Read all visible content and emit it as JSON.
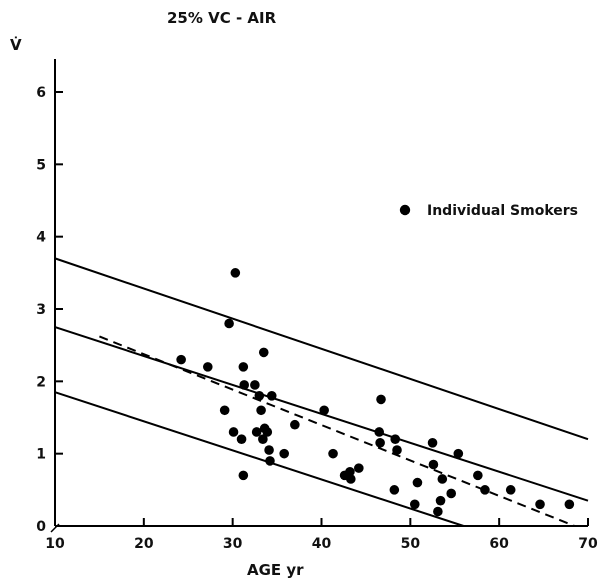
{
  "chart_data": {
    "type": "scatter",
    "title": "25% VC  -  AIR",
    "ylabel": "V̇",
    "xlabel": "AGE   yr",
    "xlim": [
      10,
      70
    ],
    "ylim": [
      0,
      6.5
    ],
    "x_ticks": [
      10,
      20,
      30,
      40,
      50,
      60,
      70
    ],
    "y_ticks": [
      0,
      1,
      2,
      3,
      4,
      5,
      6
    ],
    "x_tick_labels": [
      "10",
      "20",
      "30",
      "40",
      "50",
      "60",
      "70"
    ],
    "y_tick_labels": [
      "0",
      "1",
      "2",
      "3",
      "4",
      "5",
      "6"
    ],
    "grid": false,
    "legend_position": "right",
    "series": [
      {
        "name": "Individual Smokers",
        "marker": "filled-circle",
        "color": "#000000",
        "points": [
          {
            "x": 24.2,
            "y": 2.3
          },
          {
            "x": 27.2,
            "y": 2.2
          },
          {
            "x": 29.1,
            "y": 1.6
          },
          {
            "x": 29.6,
            "y": 2.8
          },
          {
            "x": 30.1,
            "y": 1.3
          },
          {
            "x": 30.3,
            "y": 3.5
          },
          {
            "x": 31.0,
            "y": 1.2
          },
          {
            "x": 31.2,
            "y": 0.7
          },
          {
            "x": 31.2,
            "y": 2.2
          },
          {
            "x": 31.3,
            "y": 1.95
          },
          {
            "x": 32.5,
            "y": 1.95
          },
          {
            "x": 32.7,
            "y": 1.3
          },
          {
            "x": 33.0,
            "y": 1.8
          },
          {
            "x": 33.2,
            "y": 1.6
          },
          {
            "x": 33.4,
            "y": 1.2
          },
          {
            "x": 33.5,
            "y": 2.4
          },
          {
            "x": 33.6,
            "y": 1.35
          },
          {
            "x": 33.9,
            "y": 1.3
          },
          {
            "x": 34.1,
            "y": 1.05
          },
          {
            "x": 34.2,
            "y": 0.9
          },
          {
            "x": 34.4,
            "y": 1.8
          },
          {
            "x": 35.8,
            "y": 1.0
          },
          {
            "x": 37.0,
            "y": 1.4
          },
          {
            "x": 40.3,
            "y": 1.6
          },
          {
            "x": 41.3,
            "y": 1.0
          },
          {
            "x": 42.6,
            "y": 0.7
          },
          {
            "x": 43.2,
            "y": 0.75
          },
          {
            "x": 43.3,
            "y": 0.65
          },
          {
            "x": 44.2,
            "y": 0.8
          },
          {
            "x": 46.5,
            "y": 1.3
          },
          {
            "x": 46.6,
            "y": 1.15
          },
          {
            "x": 46.7,
            "y": 1.75
          },
          {
            "x": 48.2,
            "y": 0.5
          },
          {
            "x": 48.3,
            "y": 1.2
          },
          {
            "x": 48.5,
            "y": 1.05
          },
          {
            "x": 50.5,
            "y": 0.3
          },
          {
            "x": 50.8,
            "y": 0.6
          },
          {
            "x": 52.5,
            "y": 1.15
          },
          {
            "x": 52.6,
            "y": 0.85
          },
          {
            "x": 53.1,
            "y": 0.2
          },
          {
            "x": 53.4,
            "y": 0.35
          },
          {
            "x": 53.6,
            "y": 0.65
          },
          {
            "x": 54.6,
            "y": 0.45
          },
          {
            "x": 55.4,
            "y": 1.0
          },
          {
            "x": 57.6,
            "y": 0.7
          },
          {
            "x": 58.4,
            "y": 0.5
          },
          {
            "x": 61.3,
            "y": 0.5
          },
          {
            "x": 64.6,
            "y": 0.3
          },
          {
            "x": 67.9,
            "y": 0.3
          }
        ]
      }
    ],
    "lines": [
      {
        "style": "solid",
        "x1": 10,
        "y1": 3.7,
        "x2": 70,
        "y2": 1.2
      },
      {
        "style": "solid",
        "x1": 10,
        "y1": 2.75,
        "x2": 70,
        "y2": 0.35
      },
      {
        "style": "solid",
        "x1": 10,
        "y1": 1.85,
        "x2": 56,
        "y2": 0.0
      },
      {
        "style": "dashed",
        "x1": 15,
        "y1": 2.62,
        "x2": 68.5,
        "y2": 0.0
      }
    ]
  }
}
